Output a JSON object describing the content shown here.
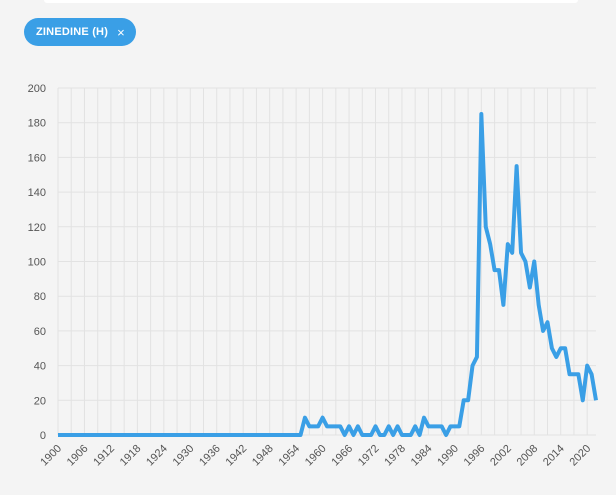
{
  "filter_chip": {
    "label": "ZINEDINE (H)",
    "close_symbol": "×",
    "close_icon": "close-icon"
  },
  "colors": {
    "accent": "#3a9fe6",
    "line": "#3a9fe6",
    "grid": "#e2e2e2",
    "background": "#f4f4f4"
  },
  "chart_data": {
    "type": "line",
    "title": "",
    "xlabel": "",
    "ylabel": "",
    "xlim": [
      1900,
      2022
    ],
    "ylim": [
      0,
      200
    ],
    "grid": true,
    "legend": "none",
    "y_ticks": [
      0,
      20,
      40,
      60,
      80,
      100,
      120,
      140,
      160,
      180,
      200
    ],
    "x_ticks": [
      1900,
      1906,
      1912,
      1918,
      1924,
      1930,
      1936,
      1942,
      1948,
      1954,
      1960,
      1966,
      1972,
      1978,
      1984,
      1990,
      1996,
      2002,
      2008,
      2014,
      2020
    ],
    "series": [
      {
        "name": "ZINEDINE (H)",
        "points": [
          [
            1900,
            0
          ],
          [
            1955,
            0
          ],
          [
            1956,
            10
          ],
          [
            1957,
            5
          ],
          [
            1958,
            5
          ],
          [
            1959,
            5
          ],
          [
            1960,
            10
          ],
          [
            1961,
            5
          ],
          [
            1962,
            5
          ],
          [
            1963,
            5
          ],
          [
            1964,
            5
          ],
          [
            1965,
            0
          ],
          [
            1966,
            5
          ],
          [
            1967,
            0
          ],
          [
            1968,
            5
          ],
          [
            1969,
            0
          ],
          [
            1970,
            0
          ],
          [
            1971,
            0
          ],
          [
            1972,
            5
          ],
          [
            1973,
            0
          ],
          [
            1974,
            0
          ],
          [
            1975,
            5
          ],
          [
            1976,
            0
          ],
          [
            1977,
            5
          ],
          [
            1978,
            0
          ],
          [
            1979,
            0
          ],
          [
            1980,
            0
          ],
          [
            1981,
            5
          ],
          [
            1982,
            0
          ],
          [
            1983,
            10
          ],
          [
            1984,
            5
          ],
          [
            1985,
            5
          ],
          [
            1986,
            5
          ],
          [
            1987,
            5
          ],
          [
            1988,
            0
          ],
          [
            1989,
            5
          ],
          [
            1990,
            5
          ],
          [
            1991,
            5
          ],
          [
            1992,
            20
          ],
          [
            1993,
            20
          ],
          [
            1994,
            40
          ],
          [
            1995,
            45
          ],
          [
            1996,
            185
          ],
          [
            1997,
            120
          ],
          [
            1998,
            110
          ],
          [
            1999,
            95
          ],
          [
            2000,
            95
          ],
          [
            2001,
            75
          ],
          [
            2002,
            110
          ],
          [
            2003,
            105
          ],
          [
            2004,
            155
          ],
          [
            2005,
            105
          ],
          [
            2006,
            100
          ],
          [
            2007,
            85
          ],
          [
            2008,
            100
          ],
          [
            2009,
            75
          ],
          [
            2010,
            60
          ],
          [
            2011,
            65
          ],
          [
            2012,
            50
          ],
          [
            2013,
            45
          ],
          [
            2014,
            50
          ],
          [
            2015,
            50
          ],
          [
            2016,
            35
          ],
          [
            2017,
            35
          ],
          [
            2018,
            35
          ],
          [
            2019,
            20
          ],
          [
            2020,
            40
          ],
          [
            2021,
            35
          ],
          [
            2022,
            20
          ]
        ]
      }
    ]
  }
}
